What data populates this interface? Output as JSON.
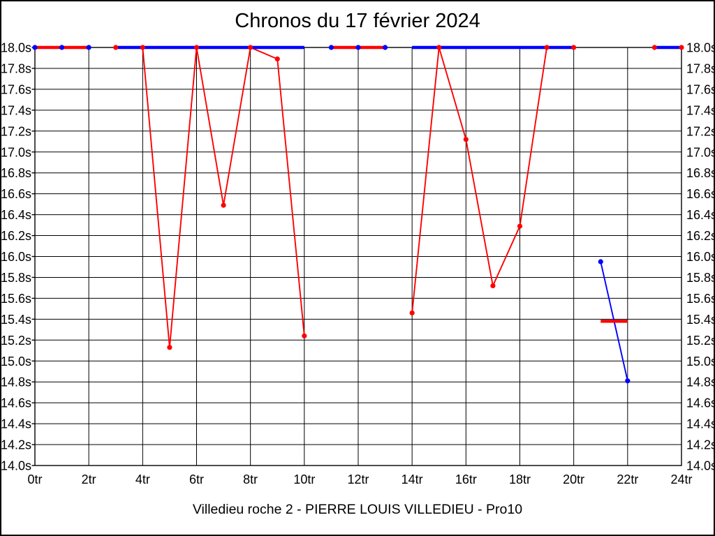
{
  "chart_data": {
    "type": "line",
    "title": "Chronos du 17 février 2024",
    "footer": "Villedieu roche 2 - PIERRE LOUIS VILLEDIEU - Pro10",
    "background_color": "#ffffff",
    "grid": true,
    "grid_color": "#000000",
    "legend": "none",
    "x_axis": {
      "unit": "tr",
      "min": 0,
      "max": 24,
      "tick_step": 2,
      "tick_labels": [
        "0tr",
        "2tr",
        "4tr",
        "6tr",
        "8tr",
        "10tr",
        "12tr",
        "14tr",
        "16tr",
        "18tr",
        "20tr",
        "22tr",
        "24tr"
      ]
    },
    "y_axis": {
      "unit": "s",
      "min": 14.0,
      "max": 18.0,
      "tick_step": 0.2,
      "label_sides": "left-and-right",
      "tick_labels": [
        "18.0s",
        "17.8s",
        "17.6s",
        "17.4s",
        "17.2s",
        "17.0s",
        "16.8s",
        "16.6s",
        "16.4s",
        "16.2s",
        "16.0s",
        "15.8s",
        "15.6s",
        "15.4s",
        "15.2s",
        "15.0s",
        "14.8s",
        "14.6s",
        "14.4s",
        "14.2s",
        "14.0s"
      ]
    },
    "series": [
      {
        "name": "chrono-rouge",
        "color": "#ff0000",
        "segments": [
          {
            "points": [
              [
                0,
                18.0
              ],
              [
                1,
                18.0
              ],
              [
                2,
                18.0
              ]
            ],
            "line": "thick",
            "markers": false,
            "z": 3
          },
          {
            "points": [
              [
                3,
                18.0
              ],
              [
                4,
                18.0
              ],
              [
                5,
                15.13
              ],
              [
                6,
                18.0
              ],
              [
                7,
                16.49
              ],
              [
                8,
                18.0
              ],
              [
                9,
                17.89
              ],
              [
                10,
                15.24
              ]
            ],
            "line": "thin",
            "markers": true,
            "z": 1
          },
          {
            "points": [
              [
                11,
                18.0
              ],
              [
                12,
                18.0
              ],
              [
                13,
                18.0
              ]
            ],
            "line": "thick",
            "markers": false,
            "z": 3
          },
          {
            "points": [
              [
                14,
                15.46
              ],
              [
                15,
                18.0
              ],
              [
                16,
                17.12
              ],
              [
                17,
                15.72
              ],
              [
                18,
                16.29
              ],
              [
                19,
                18.0
              ],
              [
                20,
                18.0
              ]
            ],
            "line": "thin",
            "markers": true,
            "z": 1
          },
          {
            "points": [
              [
                21,
                15.38
              ],
              [
                22,
                15.38
              ]
            ],
            "line": "thick",
            "markers": false,
            "z": 3
          },
          {
            "points": [
              [
                23,
                18.0
              ],
              [
                24,
                18.0
              ]
            ],
            "line": "thin",
            "markers": true,
            "z": 1
          }
        ]
      },
      {
        "name": "chrono-bleu",
        "color": "#0000ff",
        "segments": [
          {
            "points": [
              [
                0,
                18.0
              ],
              [
                1,
                18.0
              ],
              [
                2,
                18.0
              ]
            ],
            "line": "none",
            "markers": true,
            "z": 2
          },
          {
            "points": [
              [
                3,
                18.0
              ],
              [
                10,
                18.0
              ]
            ],
            "line": "thick",
            "markers": false,
            "z": 2
          },
          {
            "points": [
              [
                11,
                18.0
              ],
              [
                12,
                18.0
              ],
              [
                13,
                18.0
              ]
            ],
            "line": "none",
            "markers": true,
            "z": 2
          },
          {
            "points": [
              [
                14,
                18.0
              ],
              [
                20,
                18.0
              ]
            ],
            "line": "thick",
            "markers": false,
            "z": 2
          },
          {
            "points": [
              [
                21,
                15.95
              ],
              [
                22,
                14.81
              ]
            ],
            "line": "thin",
            "markers": true,
            "z": 2
          },
          {
            "points": [
              [
                23,
                18.0
              ],
              [
                24,
                18.0
              ]
            ],
            "line": "thick",
            "markers": false,
            "z": 2
          }
        ]
      }
    ]
  }
}
